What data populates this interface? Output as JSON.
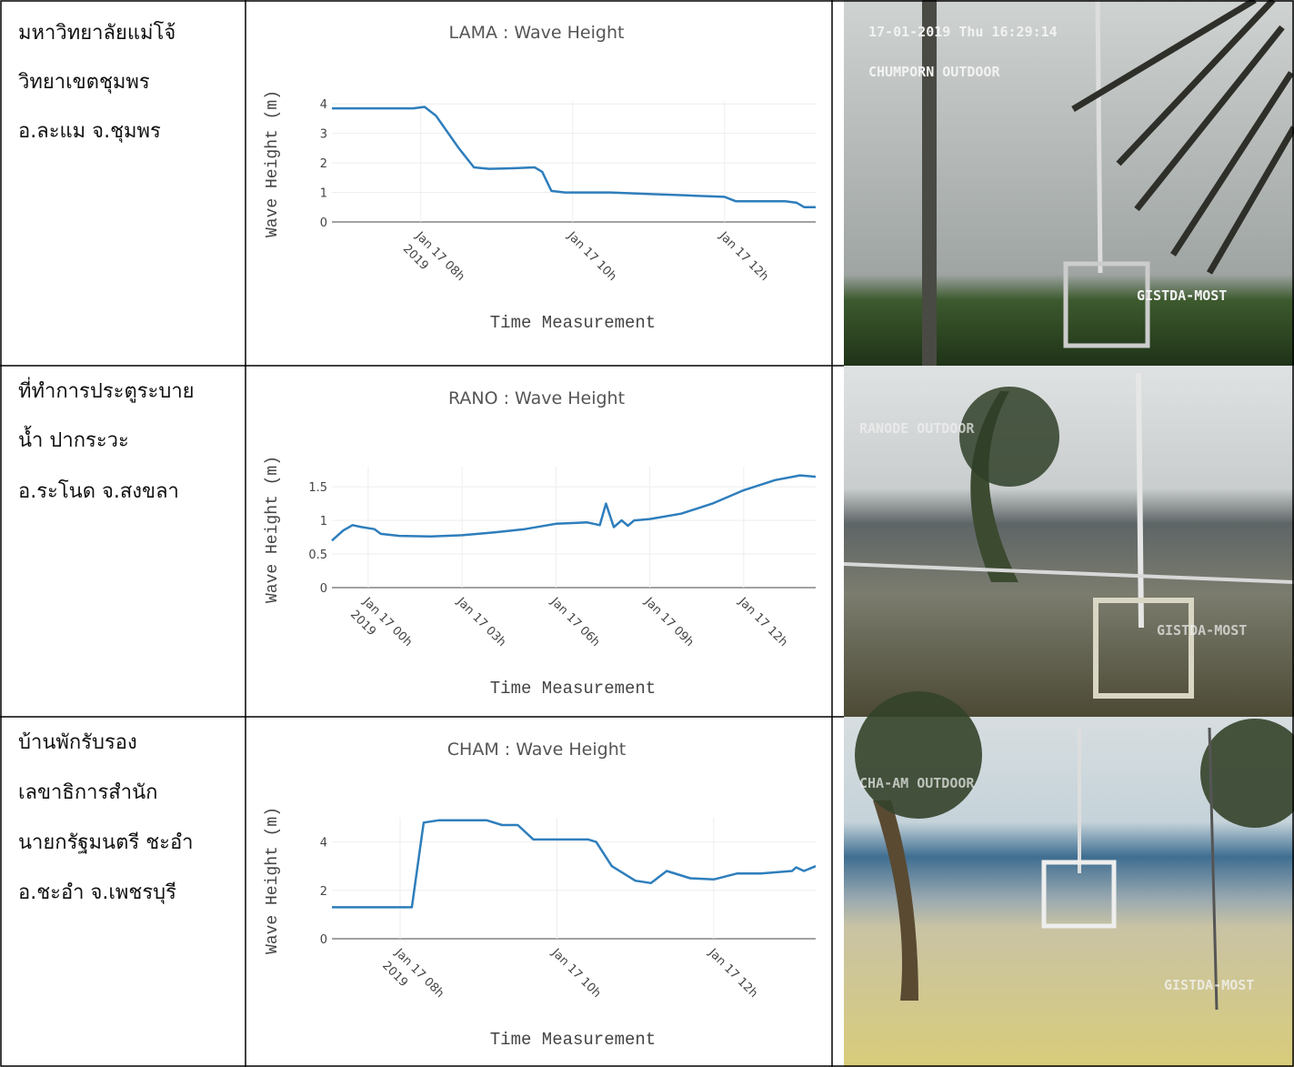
{
  "table": {
    "rows": [
      {
        "location": [
          "มหาวิทยาลัยแม่โจ้",
          "วิทยาเขตชุมพร",
          "อ.ละแม จ.ชุมพร"
        ],
        "chart": {
          "type": "line",
          "title": "LAMA : Wave Height",
          "x_label": "Time Measurement",
          "y_label": "Wave Height (m)",
          "x": [
            6.83,
            7.9,
            8.05,
            8.2,
            8.5,
            8.7,
            8.9,
            9.2,
            9.5,
            9.6,
            9.72,
            9.9,
            10.5,
            11.0,
            11.5,
            12.0,
            12.15,
            12.8,
            12.95,
            13.05,
            13.2
          ],
          "values": [
            3.85,
            3.85,
            3.9,
            3.6,
            2.5,
            1.85,
            1.8,
            1.82,
            1.85,
            1.7,
            1.05,
            1.0,
            1.0,
            0.95,
            0.9,
            0.85,
            0.7,
            0.7,
            0.65,
            0.5,
            0.5
          ],
          "color": "#2e7ebc",
          "xlim": [
            6.83,
            13.2
          ],
          "ylim": [
            0,
            4.1
          ],
          "xticks": [
            {
              "value": 8,
              "label": "Jan 17 08h"
            },
            {
              "value": 10,
              "label": "Jan 17 10h"
            },
            {
              "value": 12,
              "label": "Jan 17 12h"
            }
          ],
          "x_year_label": "2019",
          "yticks": [
            0,
            1,
            2,
            3,
            4
          ],
          "grid": true
        },
        "image": {
          "overlay": [
            "17-01-2019 Thu 16:29:14",
            "CHUMPORN OUTDOOR",
            "GISTDA-MOST"
          ]
        }
      },
      {
        "location": [
          "ที่ทำการประตูระบาย",
          "น้ำ ปากระวะ",
          "อ.ระโนด จ.สงขลา"
        ],
        "chart": {
          "type": "line",
          "title": "RANO : Wave Height",
          "x_label": "Time Measurement",
          "y_label": "Wave Height (m)",
          "x": [
            -1.16,
            -0.8,
            -0.5,
            -0.2,
            0.2,
            0.4,
            1,
            2,
            3,
            4,
            5,
            6,
            7,
            7.4,
            7.6,
            7.85,
            8.1,
            8.3,
            8.5,
            9,
            10,
            11,
            12,
            13,
            13.8,
            14.3
          ],
          "values": [
            0.7,
            0.85,
            0.93,
            0.9,
            0.87,
            0.8,
            0.77,
            0.76,
            0.78,
            0.82,
            0.87,
            0.95,
            0.97,
            0.93,
            1.25,
            0.9,
            1.0,
            0.92,
            1.0,
            1.02,
            1.1,
            1.25,
            1.45,
            1.6,
            1.67,
            1.65
          ],
          "color": "#2e7ebc",
          "xlim": [
            -1.16,
            14.3
          ],
          "ylim": [
            0,
            1.8
          ],
          "xticks": [
            {
              "value": 0,
              "label": "Jan 17 00h"
            },
            {
              "value": 3,
              "label": "Jan 17 03h"
            },
            {
              "value": 6,
              "label": "Jan 17 06h"
            },
            {
              "value": 9,
              "label": "Jan 17 09h"
            },
            {
              "value": 12,
              "label": "Jan 17 12h"
            }
          ],
          "x_year_label": "2019",
          "yticks": [
            0,
            0.5,
            1,
            1.5
          ],
          "grid": true
        },
        "image": {
          "overlay": [
            "RANODE OUTDOOR",
            "GISTDA-MOST"
          ]
        }
      },
      {
        "location": [
          "บ้านพักรับรอง",
          "เลขาธิการสำนัก",
          "นายกรัฐมนตรี ชะอำ",
          "อ.ชะอำ จ.เพชรบุรี"
        ],
        "chart": {
          "type": "line",
          "title": "CHAM : Wave Height",
          "x_label": "Time Measurement",
          "y_label": "Wave Height (m)",
          "x": [
            7.13,
            7.9,
            8.15,
            8.3,
            8.5,
            9.1,
            9.3,
            9.5,
            9.7,
            10.4,
            10.5,
            10.7,
            11.0,
            11.2,
            11.4,
            11.7,
            12.0,
            12.3,
            12.6,
            13.0,
            13.05,
            13.15,
            13.3
          ],
          "values": [
            1.3,
            1.3,
            1.3,
            4.8,
            4.9,
            4.9,
            4.7,
            4.7,
            4.1,
            4.1,
            4.0,
            3.0,
            2.4,
            2.3,
            2.8,
            2.5,
            2.45,
            2.7,
            2.7,
            2.8,
            2.95,
            2.8,
            3.0
          ],
          "color": "#2e7ebc",
          "xlim": [
            7.13,
            13.3
          ],
          "ylim": [
            0,
            5
          ],
          "xticks": [
            {
              "value": 8,
              "label": "Jan 17 08h"
            },
            {
              "value": 10,
              "label": "Jan 17 10h"
            },
            {
              "value": 12,
              "label": "Jan 17 12h"
            }
          ],
          "x_year_label": "2019",
          "yticks": [
            0,
            2,
            4
          ],
          "grid": true
        },
        "image": {
          "overlay": [
            "CHA-AM OUTDOOR",
            "GISTDA-MOST"
          ]
        }
      }
    ]
  }
}
